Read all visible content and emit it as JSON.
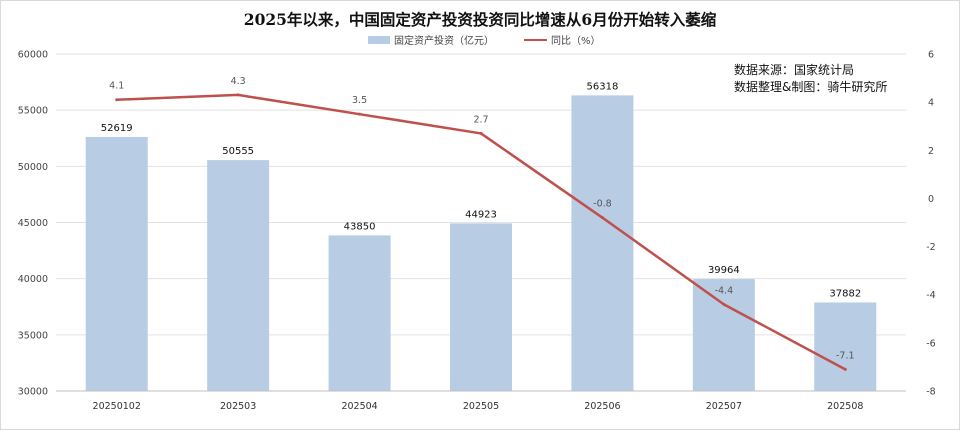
{
  "chart_data": {
    "type": "bar",
    "title": "2025年以来，中国固定资产投资投资同比增速从6月份开始转入萎缩",
    "categories": [
      "20250102",
      "202503",
      "202504",
      "202505",
      "202506",
      "202507",
      "202508"
    ],
    "series": [
      {
        "name": "固定资产投资（亿元）",
        "type": "bar",
        "axis": "left",
        "color": "#b8cde4",
        "values": [
          52619,
          50555,
          43850,
          44923,
          56318,
          39964,
          37882
        ]
      },
      {
        "name": "同比（%）",
        "type": "line",
        "axis": "right",
        "color": "#c0504d",
        "values": [
          4.1,
          4.3,
          3.5,
          2.7,
          -0.8,
          -4.4,
          -7.1
        ]
      }
    ],
    "y_left": {
      "min": 30000,
      "max": 60000,
      "ticks": [
        30000,
        35000,
        40000,
        45000,
        50000,
        55000,
        60000
      ]
    },
    "y_right": {
      "min": -8,
      "max": 6,
      "ticks": [
        -8,
        -6,
        -4,
        -2,
        0,
        2,
        4,
        6
      ]
    },
    "grid": true,
    "legend": "top-center",
    "annotations": [
      "数据来源：国家统计局",
      "数据整理&制图：骑牛研究所"
    ]
  }
}
